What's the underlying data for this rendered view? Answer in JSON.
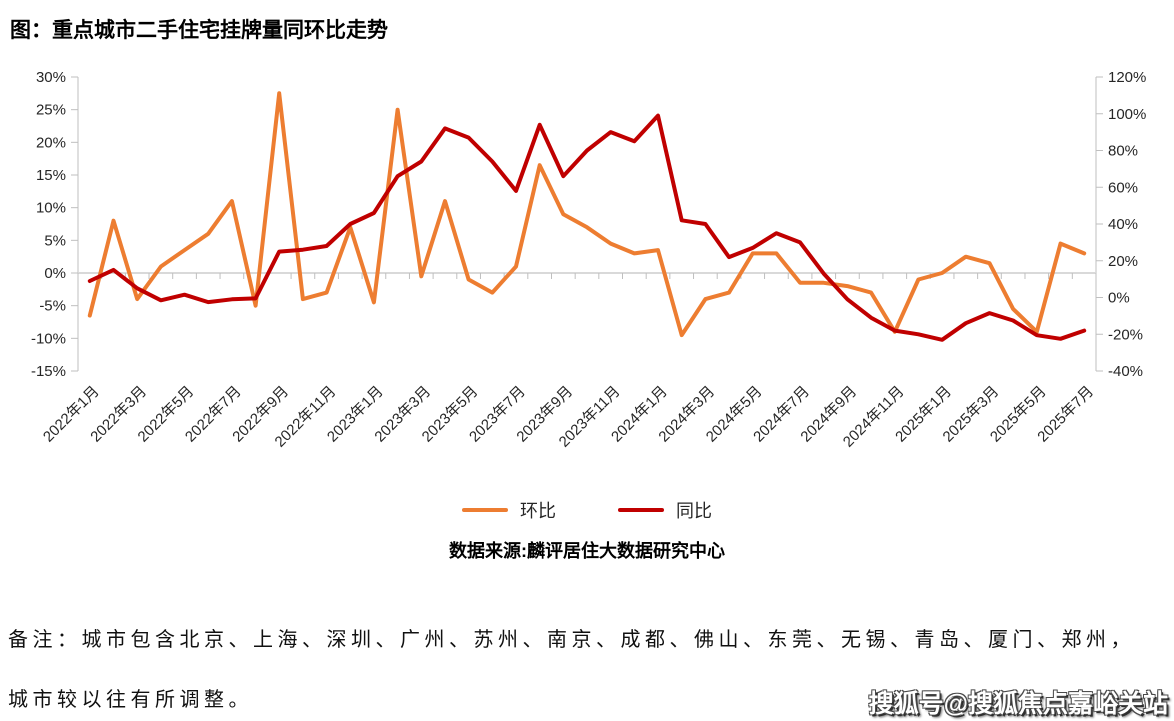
{
  "title": "图：重点城市二手住宅挂牌量同环比走势",
  "source": "数据来源:麟评居住大数据研究中心",
  "note": {
    "line1": "备注：城市包含北京、上海、深圳、广州、苏州、南京、成都、佛山、东莞、无锡、青岛、厦门、郑州，",
    "line2": "城市较以往有所调整。"
  },
  "watermark": "搜狐号@搜狐焦点嘉峪关站",
  "chart_data": {
    "type": "line",
    "title": "图：重点城市二手住宅挂牌量同环比走势",
    "categories": [
      "2022年1月",
      "2022年2月",
      "2022年3月",
      "2022年4月",
      "2022年5月",
      "2022年6月",
      "2022年7月",
      "2022年8月",
      "2022年9月",
      "2022年10月",
      "2022年11月",
      "2022年12月",
      "2023年1月",
      "2023年2月",
      "2023年3月",
      "2023年4月",
      "2023年5月",
      "2023年6月",
      "2023年7月",
      "2023年8月",
      "2023年9月",
      "2023年10月",
      "2023年11月",
      "2023年12月",
      "2024年1月",
      "2024年2月",
      "2024年3月",
      "2024年4月",
      "2024年5月",
      "2024年6月",
      "2024年7月",
      "2024年8月",
      "2024年9月",
      "2024年10月",
      "2024年11月",
      "2024年12月",
      "2025年1月",
      "2025年2月",
      "2025年3月",
      "2025年4月",
      "2025年5月",
      "2025年6月",
      "2025年7月"
    ],
    "x_tick_step": 2,
    "series": [
      {
        "name": "环比",
        "axis": "left",
        "color": "#ED7D31",
        "values": [
          -6.5,
          8,
          -4,
          1,
          3.5,
          6,
          11,
          -5,
          27.5,
          -4,
          -3,
          7,
          -4.5,
          25,
          -0.5,
          11,
          -1,
          -3,
          1,
          16.5,
          9,
          7,
          4.5,
          3,
          3.5,
          -9.5,
          -4,
          -3,
          3,
          3,
          -1.5,
          -1.5,
          -2,
          -3,
          -9,
          -1,
          0,
          2.5,
          1.5,
          -5.5,
          -9,
          4.5,
          3
        ]
      },
      {
        "name": "同比",
        "axis": "right",
        "color": "#C00000",
        "values": [
          9,
          15,
          5,
          -1.5,
          1.5,
          -2.5,
          -1,
          -0.5,
          25,
          26,
          28,
          40,
          46,
          66,
          74,
          92,
          87,
          74,
          58,
          94,
          66,
          80,
          90,
          85,
          99,
          42,
          40,
          22,
          27,
          35,
          30,
          13,
          -1,
          -11,
          -18,
          -20,
          -23,
          -14,
          -8.5,
          -12.5,
          -20.5,
          -22.5,
          -18
        ]
      }
    ],
    "left_axis": {
      "min": -15,
      "max": 30,
      "ticks": [
        "30%",
        "25%",
        "20%",
        "15%",
        "10%",
        "5%",
        "0%",
        "-5%",
        "-10%",
        "-15%"
      ]
    },
    "right_axis": {
      "min": -40,
      "max": 120,
      "ticks": [
        "120%",
        "100%",
        "80%",
        "60%",
        "40%",
        "20%",
        "0%",
        "-20%",
        "-40%"
      ]
    },
    "grid": "zero-line-only",
    "legend_position": "bottom",
    "legend": [
      "环比",
      "同比"
    ]
  }
}
